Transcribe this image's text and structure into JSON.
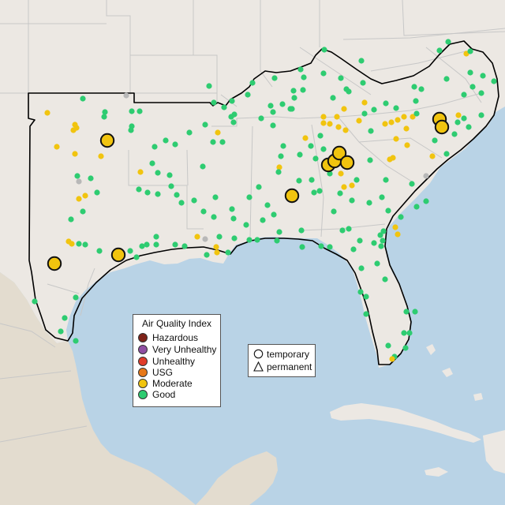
{
  "colors": {
    "water": "#b9d3e6",
    "land": "#ece8e3",
    "land_south": "#e3dccf",
    "border": "#c7c7c7",
    "region_outline": "#000000"
  },
  "legend": {
    "title": "Air Quality Index",
    "categories": [
      {
        "label": "Hazardous",
        "color": "#7e2218"
      },
      {
        "label": "Very Unhealthy",
        "color": "#8f4fa3"
      },
      {
        "label": "Unhealthy",
        "color": "#e03c2a"
      },
      {
        "label": "USG",
        "color": "#e77818"
      },
      {
        "label": "Moderate",
        "color": "#f1c40f"
      },
      {
        "label": "Good",
        "color": "#2ecc71"
      }
    ],
    "no_data_color": "#b8b8b8"
  },
  "monitor_types": [
    {
      "label": "temporary",
      "shape": "circle"
    },
    {
      "label": "permanent",
      "shape": "triangle"
    }
  ]
}
